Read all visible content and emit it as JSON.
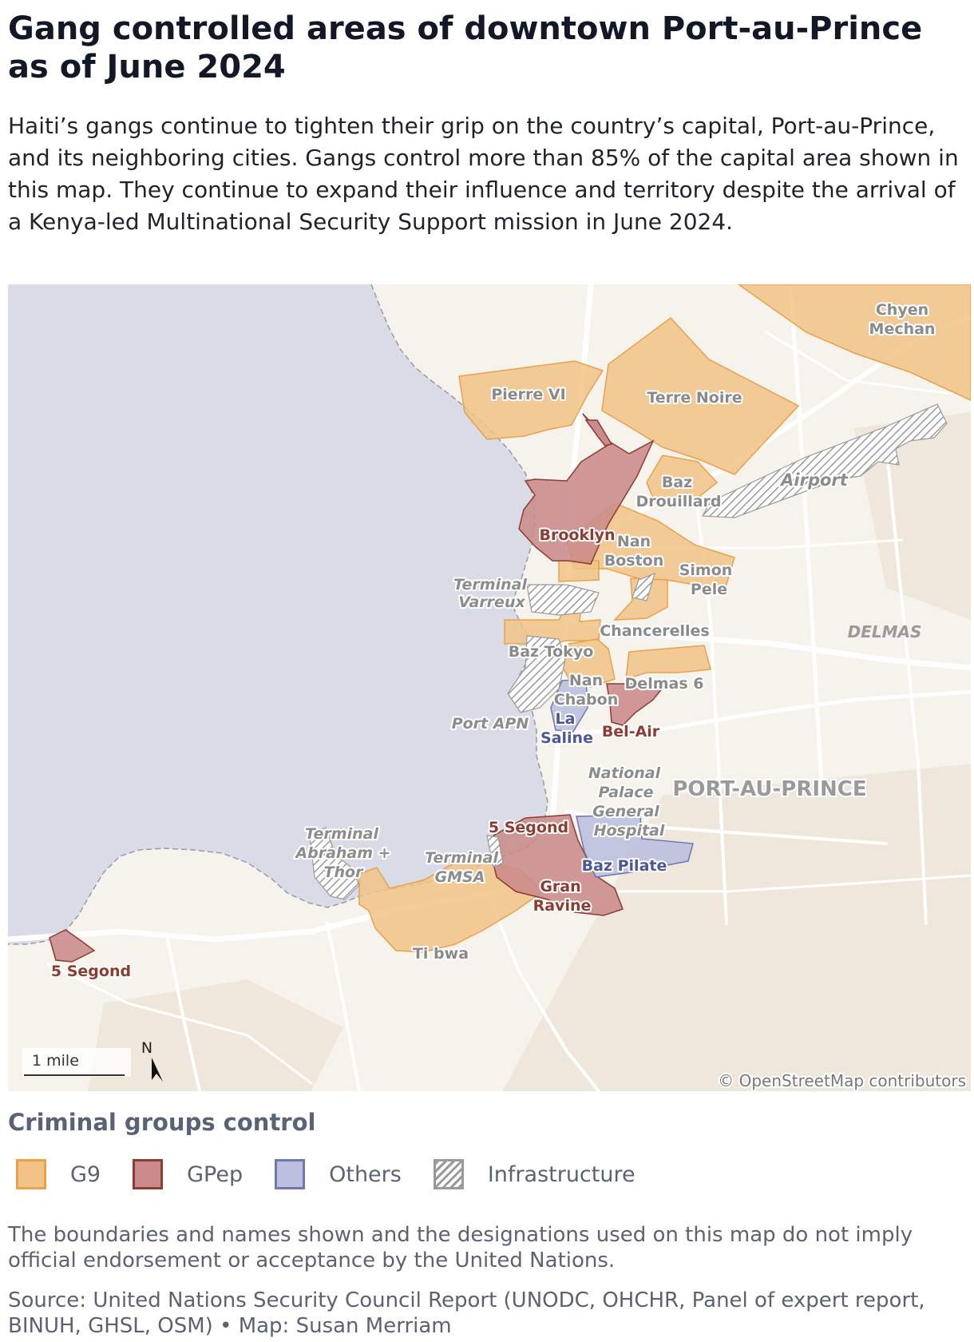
{
  "header": {
    "title": "Gang controlled areas of downtown Port-au-Prince as of June 2024",
    "subtitle": "Haiti’s gangs continue to tighten their grip on the country’s capital, Port-au-Prince, and its neighboring cities. Gangs control more than 85% of the capital area shown in this map. They continue to expand their influence and territory despite the arrival of a Kenya-led Multinational Security Support mission in June 2024."
  },
  "map": {
    "area_labels": {
      "chyen_mechan": [
        "Chyen",
        "Mechan"
      ],
      "pierre_vi": "Pierre VI",
      "terre_noire": "Terre Noire",
      "baz_drouillard": [
        "Baz",
        "Drouillard"
      ],
      "brooklyn": "Brooklyn",
      "nan_boston": [
        "Nan",
        "Boston"
      ],
      "simon_pele": [
        "Simon",
        "Pele"
      ],
      "chancerelles": "Chancerelles",
      "baz_tokyo": "Baz Tokyo",
      "nan_chabon": [
        "Nan",
        "Chabon"
      ],
      "delmas_6": "Delmas 6",
      "la_saline": [
        "La",
        "Saline"
      ],
      "bel_air": "Bel-Air",
      "five_segond_center": "5 Segond",
      "baz_pilate": "Baz Pilate",
      "gran_ravine": [
        "Gran",
        "Ravine"
      ],
      "ti_bwa": "Ti bwa",
      "five_segond_west": "5 Segond"
    },
    "infrastructure_labels": {
      "airport": "Airport",
      "terminal_varreux": [
        "Terminal",
        "Varreux"
      ],
      "port_apn": "Port APN",
      "national_palace": [
        "National",
        "Palace"
      ],
      "general_hospital": [
        "General",
        "Hospital"
      ],
      "terminal_abraham_thor": [
        "Terminal",
        "Abraham +",
        "Thor"
      ],
      "terminal_gmsa": [
        "Terminal",
        "GMSA"
      ]
    },
    "place_labels": {
      "delmas": "DELMAS",
      "port_au_prince": "PORT-AU-PRINCE"
    },
    "scale_label": "1 mile",
    "north_label": "N",
    "attribution": "© OpenStreetMap contributors",
    "colors": {
      "water": "#d9dce6",
      "land": "#f6f2ec",
      "g9": "#f1c387",
      "g9_stroke": "#e8a24c",
      "gpep": "#c98b8b",
      "gpep_stroke": "#8e3b30",
      "others": "#bcc0de",
      "others_stroke": "#6e78b0"
    }
  },
  "legend": {
    "title": "Criminal groups control",
    "items": [
      {
        "label": "G9",
        "fill": "#f1c387",
        "stroke": "#e8a24c"
      },
      {
        "label": "GPep",
        "fill": "#c98b8b",
        "stroke": "#8e3b30"
      },
      {
        "label": "Others",
        "fill": "#bcc0de",
        "stroke": "#6e78b0"
      },
      {
        "label": "Infrastructure",
        "fill": "hatch",
        "stroke": "#9a9a9a"
      }
    ]
  },
  "footer": {
    "note": "The boundaries and names shown and the designations used on this map do not imply official endorsement or acceptance by the United Nations.",
    "source": "Source: United Nations Security Council Report (UNODC, OHCHR, Panel of expert report, BINUH, GHSL, OSM) • Map: Susan Merriam"
  }
}
